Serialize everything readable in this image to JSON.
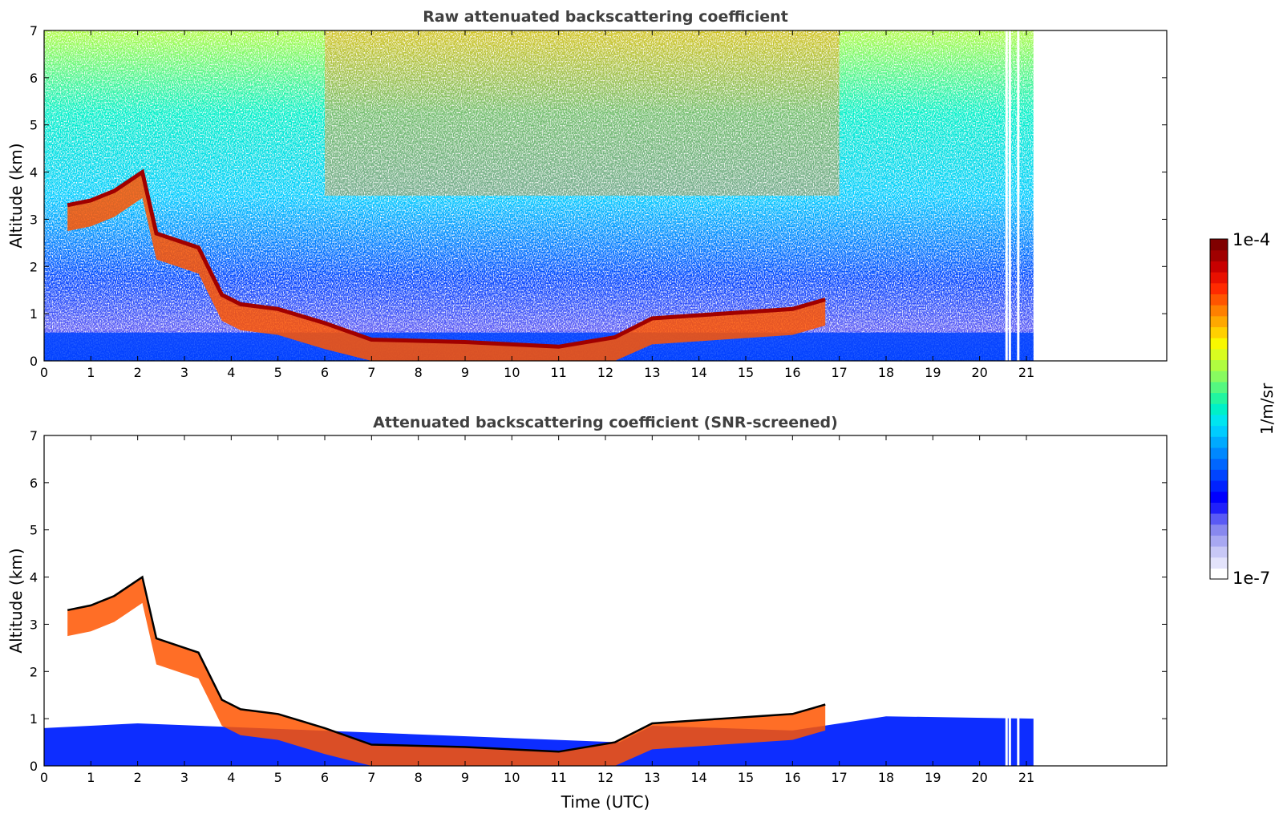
{
  "figure": {
    "xlabel": "Time (UTC)",
    "colorbar": {
      "label": "1/m/sr",
      "max_label": "1e-4",
      "min_label": "1e-7",
      "colors": [
        "#ffffff",
        "#e3e3fb",
        "#c8c8f6",
        "#a8a8f2",
        "#8888ef",
        "#5a5af5",
        "#2020fb",
        "#0000ff",
        "#0022ff",
        "#0044ff",
        "#0066ff",
        "#0088ff",
        "#00aaff",
        "#00ccff",
        "#00e5f0",
        "#00f0c8",
        "#22f5a0",
        "#55f880",
        "#88fa60",
        "#b0fc40",
        "#d8fc20",
        "#f8f800",
        "#ffd000",
        "#ffa800",
        "#ff8000",
        "#ff5500",
        "#ff2a00",
        "#e81000",
        "#c80000",
        "#a00000",
        "#800000"
      ]
    }
  },
  "chart_data": [
    {
      "type": "heatmap",
      "title": "Raw attenuated backscattering coefficient",
      "xlabel": "",
      "ylabel": "Altitude (km)",
      "xlim": [
        0,
        24
      ],
      "ylim": [
        0,
        7
      ],
      "xticks": [
        "0",
        "1",
        "2",
        "3",
        "4",
        "5",
        "6",
        "7",
        "8",
        "9",
        "10",
        "11",
        "12",
        "13",
        "14",
        "15",
        "16",
        "17",
        "18",
        "19",
        "20",
        "21"
      ],
      "yticks": [
        "0",
        "1",
        "2",
        "3",
        "4",
        "5",
        "6",
        "7"
      ],
      "data_end_time": 21.15,
      "cloud_layer_top_km": [
        {
          "t": 0.5,
          "z": 3.3
        },
        {
          "t": 1.0,
          "z": 3.4
        },
        {
          "t": 1.5,
          "z": 3.6
        },
        {
          "t": 2.1,
          "z": 4.0
        },
        {
          "t": 2.4,
          "z": 2.7
        },
        {
          "t": 3.3,
          "z": 2.4
        },
        {
          "t": 3.8,
          "z": 1.4
        },
        {
          "t": 4.2,
          "z": 1.2
        },
        {
          "t": 5.0,
          "z": 1.1
        },
        {
          "t": 6.0,
          "z": 0.8
        },
        {
          "t": 7.0,
          "z": 0.45
        },
        {
          "t": 9.0,
          "z": 0.4
        },
        {
          "t": 11.0,
          "z": 0.3
        },
        {
          "t": 12.2,
          "z": 0.5
        },
        {
          "t": 13.0,
          "z": 0.9
        },
        {
          "t": 14.5,
          "z": 1.0
        },
        {
          "t": 16.0,
          "z": 1.1
        },
        {
          "t": 16.7,
          "z": 1.3
        }
      ]
    },
    {
      "type": "heatmap",
      "title": "Attenuated backscattering coefficient (SNR-screened)",
      "xlabel": "Time (UTC)",
      "ylabel": "Altitude (km)",
      "xlim": [
        0,
        24
      ],
      "ylim": [
        0,
        7
      ],
      "xticks": [
        "0",
        "1",
        "2",
        "3",
        "4",
        "5",
        "6",
        "7",
        "8",
        "9",
        "10",
        "11",
        "12",
        "13",
        "14",
        "15",
        "16",
        "17",
        "18",
        "19",
        "20",
        "21"
      ],
      "yticks": [
        "0",
        "1",
        "2",
        "3",
        "4",
        "5",
        "6",
        "7"
      ],
      "data_end_time": 21.15,
      "boundary_layer_top_km": [
        {
          "t": 0.0,
          "z": 0.8
        },
        {
          "t": 2.0,
          "z": 0.9
        },
        {
          "t": 12.3,
          "z": 0.5
        },
        {
          "t": 13.0,
          "z": 0.85
        },
        {
          "t": 16.0,
          "z": 0.75
        },
        {
          "t": 18.0,
          "z": 1.05
        },
        {
          "t": 21.15,
          "z": 1.0
        }
      ]
    }
  ]
}
